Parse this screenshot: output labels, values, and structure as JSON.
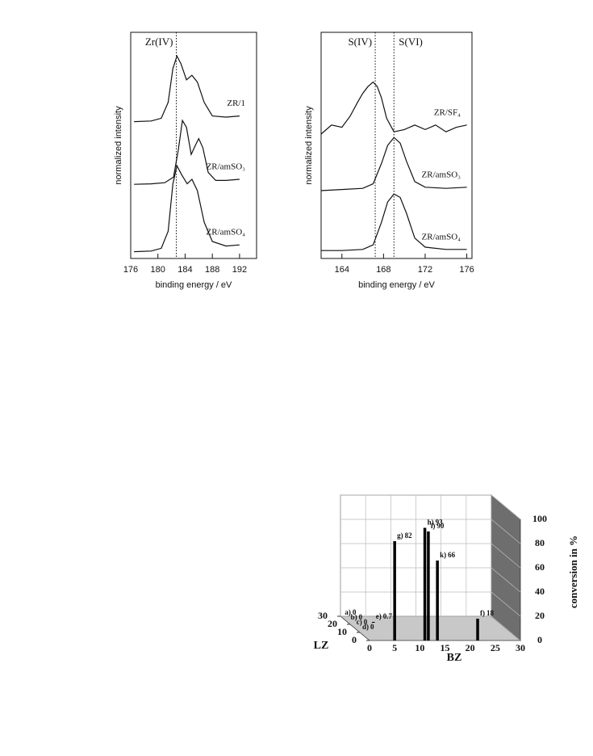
{
  "chart_data": [
    {
      "type": "line",
      "y_label": "normalized intensity",
      "x_label": "binding energy / eV",
      "xlim": [
        176,
        194.5
      ],
      "xticks": [
        176,
        180,
        184,
        188,
        192
      ],
      "ylim": [
        0,
        10
      ],
      "reference_lines": [
        182.7
      ],
      "annotations": [
        "Zr(IV)"
      ],
      "color": "#111111",
      "series": [
        {
          "name": "ZR/1",
          "x": [
            176.5,
            179,
            180.5,
            181.5,
            182.2,
            182.8,
            183.4,
            184.2,
            185,
            185.8,
            186.8,
            188,
            190,
            192
          ],
          "values": [
            6.05,
            6.08,
            6.2,
            6.9,
            8.4,
            8.95,
            8.6,
            7.9,
            8.1,
            7.8,
            6.9,
            6.3,
            6.25,
            6.3
          ]
        },
        {
          "name": "ZR/amSO₃",
          "x": [
            176.5,
            179,
            181,
            182.3,
            183,
            183.6,
            184.2,
            184.9,
            185.5,
            186,
            186.6,
            187.4,
            188.5,
            190,
            192
          ],
          "values": [
            3.28,
            3.3,
            3.35,
            3.6,
            4.8,
            6.1,
            5.8,
            4.6,
            5.0,
            5.3,
            4.9,
            3.8,
            3.45,
            3.45,
            3.5
          ]
        },
        {
          "name": "ZR/amSO₄",
          "x": [
            176.5,
            179,
            180.5,
            181.5,
            182.2,
            182.8,
            183.5,
            184.3,
            185,
            185.8,
            186.8,
            188,
            190,
            192
          ],
          "values": [
            0.3,
            0.33,
            0.45,
            1.2,
            3.3,
            4.1,
            3.7,
            3.3,
            3.5,
            3.0,
            1.6,
            0.75,
            0.55,
            0.6
          ]
        }
      ]
    },
    {
      "type": "line",
      "y_label": "normalized intensity",
      "x_label": "binding energy / eV",
      "xlim": [
        162,
        176.5
      ],
      "xticks": [
        164,
        168,
        172,
        176
      ],
      "ylim": [
        0,
        10
      ],
      "reference_lines": [
        167.2,
        169.0
      ],
      "annotations": [
        "S(IV)",
        "S(VI)"
      ],
      "color": "#111111",
      "series": [
        {
          "name": "ZR/SF₄",
          "x": [
            162,
            163,
            164,
            164.8,
            165.5,
            166,
            166.5,
            167,
            167.4,
            167.8,
            168.3,
            169,
            170,
            171,
            172,
            173,
            174,
            175,
            176
          ],
          "values": [
            5.5,
            5.9,
            5.8,
            6.3,
            6.9,
            7.3,
            7.6,
            7.8,
            7.6,
            7.1,
            6.2,
            5.6,
            5.7,
            5.9,
            5.7,
            5.9,
            5.6,
            5.8,
            5.9
          ]
        },
        {
          "name": "ZR/amSO₃",
          "x": [
            162,
            164,
            166,
            167,
            167.8,
            168.4,
            169,
            169.6,
            170.2,
            171,
            172,
            174,
            176
          ],
          "values": [
            3.0,
            3.05,
            3.1,
            3.3,
            4.2,
            5.0,
            5.35,
            5.1,
            4.3,
            3.4,
            3.15,
            3.1,
            3.15
          ]
        },
        {
          "name": "ZR/amSO₄",
          "x": [
            162,
            164,
            166,
            167,
            167.8,
            168.4,
            169,
            169.6,
            170.2,
            171,
            172,
            174,
            176
          ],
          "values": [
            0.35,
            0.35,
            0.4,
            0.6,
            1.6,
            2.5,
            2.85,
            2.7,
            2.0,
            0.9,
            0.5,
            0.4,
            0.4
          ]
        }
      ]
    },
    {
      "type": "bar3d",
      "x_label": "BZ",
      "lz_label": "LZ",
      "y_label": "conversion in %",
      "xlim": [
        0,
        30
      ],
      "xticks": [
        0,
        5,
        10,
        15,
        20,
        25,
        30
      ],
      "lzlim": [
        0,
        30
      ],
      "lzticks": [
        0,
        10,
        20,
        30
      ],
      "ylim": [
        0,
        100
      ],
      "yticks": [
        0,
        20,
        40,
        60,
        80,
        100
      ],
      "grid": true,
      "color": "#000000",
      "categories": [
        "a)",
        "b)",
        "e)",
        "c)",
        "d)",
        "g)",
        "h)",
        "i)",
        "k)",
        "f)"
      ],
      "bz": [
        0,
        0,
        5,
        0,
        0,
        5,
        11,
        11.7,
        13.5,
        21.5
      ],
      "lz": [
        28,
        22,
        22,
        16,
        10,
        0,
        0,
        0,
        0,
        0
      ],
      "values": [
        0,
        0,
        0.7,
        0,
        0,
        82,
        93,
        90,
        66,
        18
      ]
    }
  ]
}
